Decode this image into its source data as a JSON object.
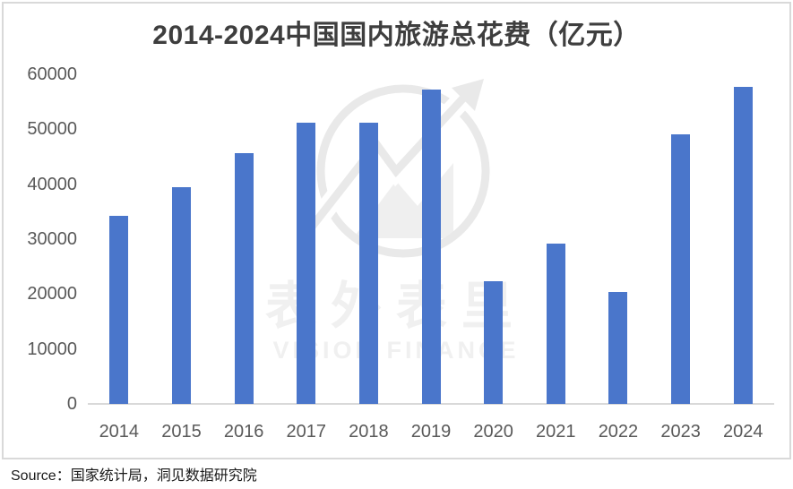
{
  "page": {
    "source_note": "Source：国家统计局，洞见数据研究院"
  },
  "watermark": {
    "cn": "表外表里",
    "en": "VISION FINANCE"
  },
  "chart_data": {
    "type": "bar",
    "title": "2014-2024中国国内旅游总花费（亿元）",
    "categories": [
      "2014",
      "2015",
      "2016",
      "2017",
      "2018",
      "2019",
      "2020",
      "2021",
      "2022",
      "2023",
      "2024"
    ],
    "values": [
      34200,
      39400,
      45600,
      51200,
      51200,
      57300,
      22300,
      29200,
      20400,
      49100,
      57700
    ],
    "unit": "亿元",
    "xlabel": "",
    "ylabel": "",
    "ylim": [
      0,
      60000
    ],
    "yticks": [
      0,
      10000,
      20000,
      30000,
      40000,
      50000,
      60000
    ],
    "grid": false,
    "legend": false
  },
  "colors": {
    "bar": "#4A76CB",
    "title_text": "#3E3E3E",
    "axis_label": "#595959",
    "axis_line": "#D9D9D9",
    "frame_border": "#D9D9D9",
    "watermark": "#EDEDED",
    "background": "#FFFFFF"
  }
}
